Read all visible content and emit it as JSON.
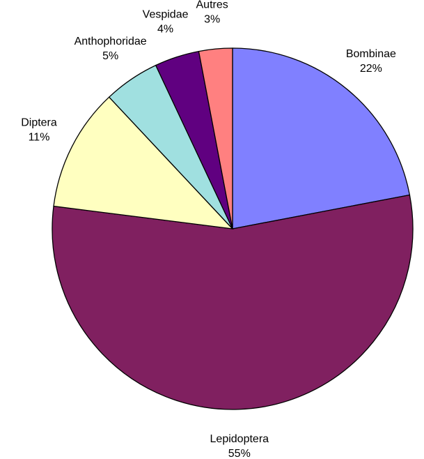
{
  "chart_data": {
    "type": "pie",
    "categories": [
      "Bombinae",
      "Lepidoptera",
      "Diptera",
      "Anthophoridae",
      "Vespidae",
      "Autres"
    ],
    "values": [
      22,
      55,
      11,
      5,
      4,
      3
    ],
    "value_labels": [
      "22%",
      "55%",
      "11%",
      "5%",
      "4%",
      "3%"
    ],
    "colors": [
      "#8080ff",
      "#802060",
      "#ffffc0",
      "#a0e0e0",
      "#600080",
      "#ff8080"
    ]
  }
}
